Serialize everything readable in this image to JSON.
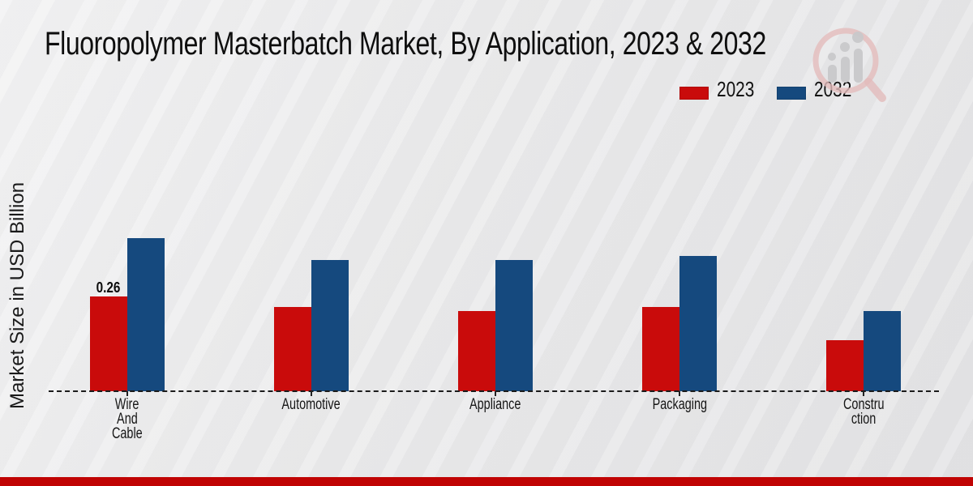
{
  "title": "Fluoropolymer Masterbatch Market, By Application, 2023 & 2032",
  "accent_colors": {
    "footer_bar": "#c00404",
    "series_2023": "#c90b0b",
    "series_2032": "#15497e"
  },
  "watermark": {
    "icon": "magnifier-bar-chart-logo-icon"
  },
  "chart_data": {
    "type": "bar",
    "title": "Fluoropolymer Masterbatch Market, By Application, 2023 & 2032",
    "xlabel": "",
    "ylabel": "Market Size in USD Billion",
    "categories": [
      "Wire And Cable",
      "Automotive",
      "Appliance",
      "Packaging",
      "Construction"
    ],
    "category_display_lines": [
      [
        "Wire",
        "And",
        "Cable"
      ],
      [
        "Automotive"
      ],
      [
        "Appliance"
      ],
      [
        "Packaging"
      ],
      [
        "Constru",
        "ction"
      ]
    ],
    "series": [
      {
        "name": "2023",
        "color": "#c90b0b",
        "values": [
          0.26,
          0.23,
          0.22,
          0.23,
          0.14
        ]
      },
      {
        "name": "2032",
        "color": "#15497e",
        "values": [
          0.42,
          0.36,
          0.36,
          0.37,
          0.22
        ]
      }
    ],
    "data_labels": [
      {
        "series_index": 0,
        "category_index": 0,
        "text": "0.26"
      }
    ],
    "ylim": [
      0,
      0.5
    ],
    "y_axis_ticks_visible": false,
    "grid": false,
    "baseline_style": "dashed",
    "legend_position": "top-right",
    "legend": [
      "2023",
      "2032"
    ]
  }
}
